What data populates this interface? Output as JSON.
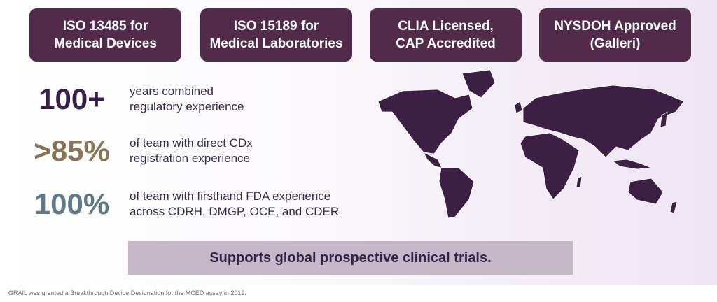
{
  "badges": [
    {
      "line1": "ISO 13485 for",
      "line2": "Medical Devices"
    },
    {
      "line1": "ISO 15189 for",
      "line2": "Medical Laboratories"
    },
    {
      "line1": "CLIA Licensed,",
      "line2": "CAP Accredited"
    },
    {
      "line1": "NYSDOH Approved",
      "line2": "(Galleri)"
    }
  ],
  "stats": [
    {
      "value": "100+",
      "line1": "years combined",
      "line2": "regulatory experience",
      "color": "#3a1f48"
    },
    {
      "value": ">85%",
      "line1": "of team with direct CDx",
      "line2": "registration experience",
      "color": "#8a7456"
    },
    {
      "value": "100%",
      "line1": "of team with firsthand FDA experience",
      "line2": "across CDRH, DMGP, OCE, and CDER",
      "color": "#5f7a85"
    }
  ],
  "banner": "Supports global prospective clinical trials.",
  "footnote": "GRAIL was granted a Breakthrough Device Designation for the MCED assay in 2019.",
  "colors": {
    "badge": "#522a4c",
    "map": "#3d1f45",
    "banner": "#c6b8c9"
  }
}
